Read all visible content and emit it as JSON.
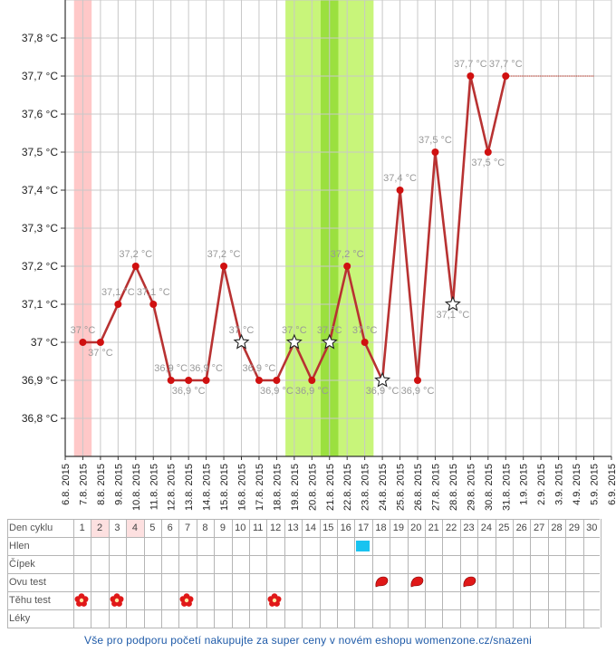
{
  "chart_data": {
    "type": "line",
    "unit_suffix": " °C",
    "ylim": [
      36.7,
      37.9
    ],
    "y_ticks": [
      "37,8 °C",
      "37,7 °C",
      "37,6 °C",
      "37,5 °C",
      "37,4 °C",
      "37,3 °C",
      "37,2 °C",
      "37,1 °C",
      "37 °C",
      "36,9 °C",
      "36,8 °C"
    ],
    "y_tick_values": [
      37.8,
      37.7,
      37.6,
      37.5,
      37.4,
      37.3,
      37.2,
      37.1,
      37.0,
      36.9,
      36.8
    ],
    "x_dates": [
      "6.8. 2015",
      "7.8. 2015",
      "8.8. 2015",
      "9.8. 2015",
      "10.8. 2015",
      "11.8. 2015",
      "12.8. 2015",
      "13.8. 2015",
      "14.8. 2015",
      "15.8. 2015",
      "16.8. 2015",
      "17.8. 2015",
      "18.8. 2015",
      "19.8. 2015",
      "20.8. 2015",
      "21.8. 2015",
      "22.8. 2015",
      "23.8. 2015",
      "24.8. 2015",
      "25.8. 2015",
      "26.8. 2015",
      "27.8. 2015",
      "28.8. 2015",
      "29.8. 2015",
      "30.8. 2015",
      "31.8. 2015",
      "1.9. 2015",
      "2.9. 2015",
      "3.9. 2015",
      "4.9. 2015",
      "5.9. 2015",
      "6.9. 2015"
    ],
    "series": [
      {
        "points": [
          {
            "x": "7.8. 2015",
            "y": 37.0,
            "label": "37 °C",
            "marker": "dot"
          },
          {
            "x": "8.8. 2015",
            "y": 37.0,
            "label": "37 °C",
            "marker": "dot"
          },
          {
            "x": "9.8. 2015",
            "y": 37.1,
            "label": "37,1 °C",
            "marker": "dot"
          },
          {
            "x": "10.8. 2015",
            "y": 37.2,
            "label": "37,2 °C",
            "marker": "dot"
          },
          {
            "x": "11.8. 2015",
            "y": 37.1,
            "label": "37,1 °C",
            "marker": "dot"
          },
          {
            "x": "12.8. 2015",
            "y": 36.9,
            "label": "36,9 °C",
            "marker": "dot"
          },
          {
            "x": "13.8. 2015",
            "y": 36.9,
            "label": "36,9 °C",
            "marker": "dot"
          },
          {
            "x": "14.8. 2015",
            "y": 36.9,
            "label": "36,9 °C",
            "marker": "dot"
          },
          {
            "x": "15.8. 2015",
            "y": 37.2,
            "label": "37,2 °C",
            "marker": "dot"
          },
          {
            "x": "16.8. 2015",
            "y": 37.0,
            "label": "37 °C",
            "marker": "star"
          },
          {
            "x": "17.8. 2015",
            "y": 36.9,
            "label": "36,9 °C",
            "marker": "dot"
          },
          {
            "x": "18.8. 2015",
            "y": 36.9,
            "label": "36,9 °C",
            "marker": "dot"
          },
          {
            "x": "19.8. 2015",
            "y": 37.0,
            "label": "37 °C",
            "marker": "star"
          },
          {
            "x": "20.8. 2015",
            "y": 36.9,
            "label": "36,9 °C",
            "marker": "dot"
          },
          {
            "x": "21.8. 2015",
            "y": 37.0,
            "label": "37 °C",
            "marker": "star"
          },
          {
            "x": "22.8. 2015",
            "y": 37.2,
            "label": "37,2 °C",
            "marker": "dot"
          },
          {
            "x": "23.8. 2015",
            "y": 37.0,
            "label": "37 °C",
            "marker": "dot"
          },
          {
            "x": "24.8. 2015",
            "y": 36.9,
            "label": "36,9 °C",
            "marker": "star"
          },
          {
            "x": "25.8. 2015",
            "y": 37.4,
            "label": "37,4 °C",
            "marker": "dot"
          },
          {
            "x": "26.8. 2015",
            "y": 36.9,
            "label": "36,9 °C",
            "marker": "dot"
          },
          {
            "x": "27.8. 2015",
            "y": 37.5,
            "label": "37,5 °C",
            "marker": "dot"
          },
          {
            "x": "28.8. 2015",
            "y": 37.1,
            "label": "37,1 °C",
            "marker": "star"
          },
          {
            "x": "29.8. 2015",
            "y": 37.7,
            "label": "37,7 °C",
            "marker": "dot"
          },
          {
            "x": "30.8. 2015",
            "y": 37.5,
            "label": "37,5 °C",
            "marker": "dot"
          },
          {
            "x": "31.8. 2015",
            "y": 37.7,
            "label": "37,7 °C",
            "marker": "dot"
          }
        ],
        "color": "#b83232"
      }
    ],
    "label_positions": [
      "above",
      "below",
      "above",
      "above",
      "above",
      "above",
      "below",
      "above",
      "above",
      "above",
      "above",
      "below",
      "above",
      "below",
      "above",
      "above",
      "above",
      "below",
      "above",
      "below",
      "above",
      "below",
      "above",
      "below",
      "above"
    ],
    "projection": {
      "from": "31.8. 2015",
      "to": "5.9. 2015",
      "y": 37.7,
      "color": "#c0392b"
    },
    "bands": [
      {
        "from": "6.8. 2015",
        "to": "7.8. 2015",
        "color": "#ffc8c8",
        "kind": "menstruation"
      },
      {
        "from": "18.8. 2015",
        "to": "23.8. 2015",
        "color": "#c8f57a",
        "kind": "fertile"
      },
      {
        "from": "20.8. 2015",
        "to": "21.8. 2015",
        "color": "#9be03f",
        "kind": "peak"
      }
    ],
    "grid": true,
    "colors": {
      "grid": "#c8c8c8",
      "axis": "#333333",
      "label": "#999999",
      "line": "#b83232",
      "dot": "#d01010"
    }
  },
  "table": {
    "rows": [
      "Den cyklu",
      "Hlen",
      "Čípek",
      "Ovu test",
      "Těhu test",
      "Léky"
    ],
    "days": [
      "1",
      "2",
      "3",
      "4",
      "5",
      "6",
      "7",
      "8",
      "9",
      "10",
      "11",
      "12",
      "13",
      "14",
      "15",
      "16",
      "17",
      "18",
      "19",
      "20",
      "21",
      "22",
      "23",
      "24",
      "25",
      "26",
      "27",
      "28",
      "29",
      "30"
    ],
    "highlighted_days": [
      "2",
      "4"
    ],
    "highlight_color": "#fde0e0",
    "hlen_marks": [
      "17"
    ],
    "ovu_marks": [
      "18",
      "20",
      "23"
    ],
    "tehu_marks": [
      "1",
      "3",
      "7",
      "12"
    ],
    "hlen_color": "#19c3f0",
    "ovu_color": "#e01818",
    "tehu_color": "#e01818"
  },
  "footer_text": "Vše pro podporu početí nakupujte za super ceny v novém eshopu womenzone.cz/snazeni"
}
